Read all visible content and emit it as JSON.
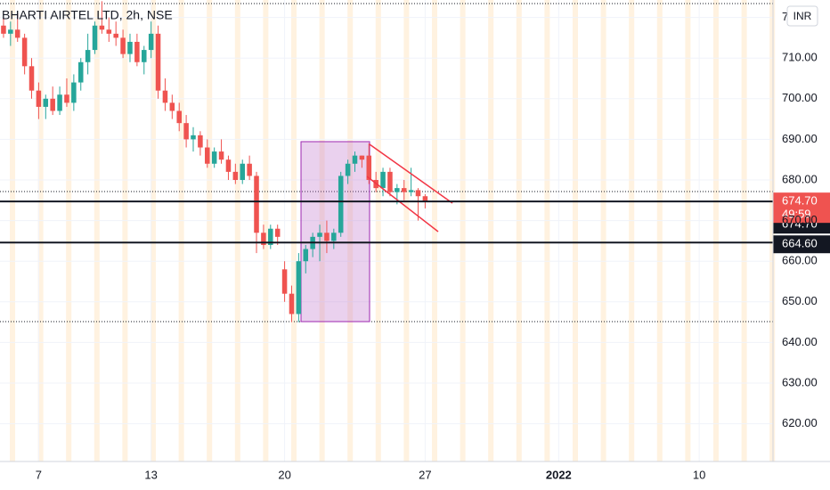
{
  "chart_data": {
    "type": "candlestick",
    "title": "BHARTI AIRTEL LTD, 2h, NSE",
    "currency": "INR",
    "x": [
      0,
      1,
      2,
      3,
      4,
      5,
      6,
      7,
      8,
      9,
      10,
      11,
      12,
      13,
      14,
      15,
      16,
      17,
      18,
      19,
      20,
      21,
      22,
      23,
      24,
      25,
      26,
      27,
      28,
      29,
      30,
      31,
      32,
      33,
      34,
      35,
      36,
      37,
      38,
      39,
      40,
      41,
      42,
      43,
      44,
      45,
      46,
      47,
      48,
      49,
      50,
      51,
      52,
      53,
      54,
      55,
      56,
      57,
      58,
      59,
      60
    ],
    "open": [
      718,
      716,
      717,
      715,
      708,
      702,
      698,
      700,
      697,
      701,
      699,
      704,
      709,
      712,
      718,
      717,
      716,
      715,
      711,
      714,
      709,
      712,
      716,
      702,
      699,
      697,
      694,
      690,
      691,
      688,
      684,
      687,
      685,
      682,
      680,
      684,
      681,
      667,
      664,
      668,
      658,
      652,
      647,
      660,
      663,
      666,
      667,
      665,
      667,
      681,
      684,
      686,
      686,
      680,
      678,
      682,
      677,
      678,
      677,
      677.5,
      676
    ],
    "high": [
      720,
      719,
      721,
      716,
      710,
      704,
      701,
      703,
      703,
      705,
      706,
      710,
      716,
      719,
      724,
      720,
      719,
      717,
      716,
      716,
      713,
      719,
      718,
      705,
      701,
      699,
      696,
      693,
      692,
      690,
      688,
      690,
      686,
      684,
      685,
      686,
      682,
      669,
      669,
      669,
      660,
      654,
      662,
      664,
      667,
      669,
      670,
      668,
      682,
      685,
      687,
      686,
      689,
      682,
      683,
      683,
      679,
      680,
      683,
      678,
      676.5
    ],
    "low": [
      715,
      713,
      714,
      706,
      700,
      695,
      695,
      696,
      696,
      698,
      697,
      702,
      706,
      711,
      716,
      714,
      713,
      710,
      709,
      708,
      706,
      710,
      700,
      697,
      695,
      692,
      688,
      687,
      686,
      683,
      683,
      684,
      680,
      679,
      679,
      680,
      662,
      663,
      663,
      664,
      650,
      645,
      645,
      657,
      661,
      660,
      662,
      663,
      666,
      679,
      682,
      683,
      679,
      677,
      676,
      676,
      674,
      675,
      676,
      670,
      673
    ],
    "close": [
      716,
      717,
      715,
      708,
      702,
      698,
      700,
      697,
      701,
      699,
      704,
      709,
      712,
      718,
      717,
      716,
      715,
      711,
      714,
      709,
      712,
      716,
      702,
      699,
      697,
      694,
      690,
      691,
      688,
      684,
      687,
      685,
      682,
      680,
      684,
      681,
      667,
      664,
      668,
      666,
      652,
      647,
      660,
      663,
      666,
      667,
      665,
      667,
      681,
      684,
      686,
      685,
      680,
      678,
      682,
      677,
      678,
      677,
      677.5,
      676,
      674.7
    ],
    "up_color": "#26a69a",
    "down_color": "#ef5350",
    "xlim": [
      -0.5,
      109.5
    ],
    "xticks": [
      {
        "value": 5,
        "label": "7"
      },
      {
        "value": 21,
        "label": "13"
      },
      {
        "value": 40,
        "label": "20"
      },
      {
        "value": 60,
        "label": "27"
      },
      {
        "value": 79,
        "label": "2022"
      },
      {
        "value": 99,
        "label": "10"
      }
    ],
    "ylim": [
      610.7,
      724.3
    ],
    "yticks": [
      {
        "value": 620,
        "label": "620.00"
      },
      {
        "value": 630,
        "label": "630.00"
      },
      {
        "value": 640,
        "label": "640.00"
      },
      {
        "value": 650,
        "label": "650.00"
      },
      {
        "value": 660,
        "label": "660.00"
      },
      {
        "value": 670,
        "label": "670.00"
      },
      {
        "value": 680,
        "label": "680.00"
      },
      {
        "value": 690,
        "label": "690.00"
      },
      {
        "value": 700,
        "label": "700.00"
      },
      {
        "value": 710,
        "label": "710.00"
      },
      {
        "value": 720,
        "label": "720.00"
      }
    ],
    "grid": true,
    "hlines": [
      {
        "value": 674.7,
        "label": "674.70"
      },
      {
        "value": 664.6,
        "label": "664.60"
      }
    ],
    "last_price": {
      "value": 674.7,
      "label": "674.70"
    },
    "countdown": "49:59"
  }
}
